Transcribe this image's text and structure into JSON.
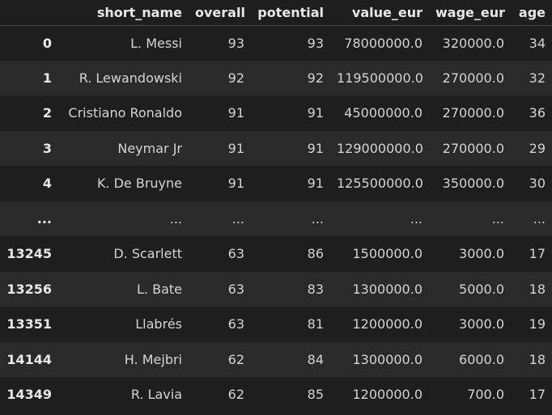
{
  "table": {
    "columns": [
      "short_name",
      "overall",
      "potential",
      "value_eur",
      "wage_eur",
      "age"
    ],
    "rows": [
      {
        "index": "0",
        "cells": [
          "L. Messi",
          "93",
          "93",
          "78000000.0",
          "320000.0",
          "34"
        ]
      },
      {
        "index": "1",
        "cells": [
          "R. Lewandowski",
          "92",
          "92",
          "119500000.0",
          "270000.0",
          "32"
        ]
      },
      {
        "index": "2",
        "cells": [
          "Cristiano Ronaldo",
          "91",
          "91",
          "45000000.0",
          "270000.0",
          "36"
        ]
      },
      {
        "index": "3",
        "cells": [
          "Neymar Jr",
          "91",
          "91",
          "129000000.0",
          "270000.0",
          "29"
        ]
      },
      {
        "index": "4",
        "cells": [
          "K. De Bruyne",
          "91",
          "91",
          "125500000.0",
          "350000.0",
          "30"
        ]
      },
      {
        "index": "...",
        "cells": [
          "...",
          "...",
          "...",
          "...",
          "...",
          "..."
        ]
      },
      {
        "index": "13245",
        "cells": [
          "D. Scarlett",
          "63",
          "86",
          "1500000.0",
          "3000.0",
          "17"
        ]
      },
      {
        "index": "13256",
        "cells": [
          "L. Bate",
          "63",
          "83",
          "1300000.0",
          "5000.0",
          "18"
        ]
      },
      {
        "index": "13351",
        "cells": [
          "Llabrés",
          "63",
          "81",
          "1200000.0",
          "3000.0",
          "19"
        ]
      },
      {
        "index": "14144",
        "cells": [
          "H. Mejbri",
          "62",
          "84",
          "1300000.0",
          "6000.0",
          "18"
        ]
      },
      {
        "index": "14349",
        "cells": [
          "R. Lavia",
          "62",
          "85",
          "1200000.0",
          "700.0",
          "17"
        ]
      }
    ]
  }
}
